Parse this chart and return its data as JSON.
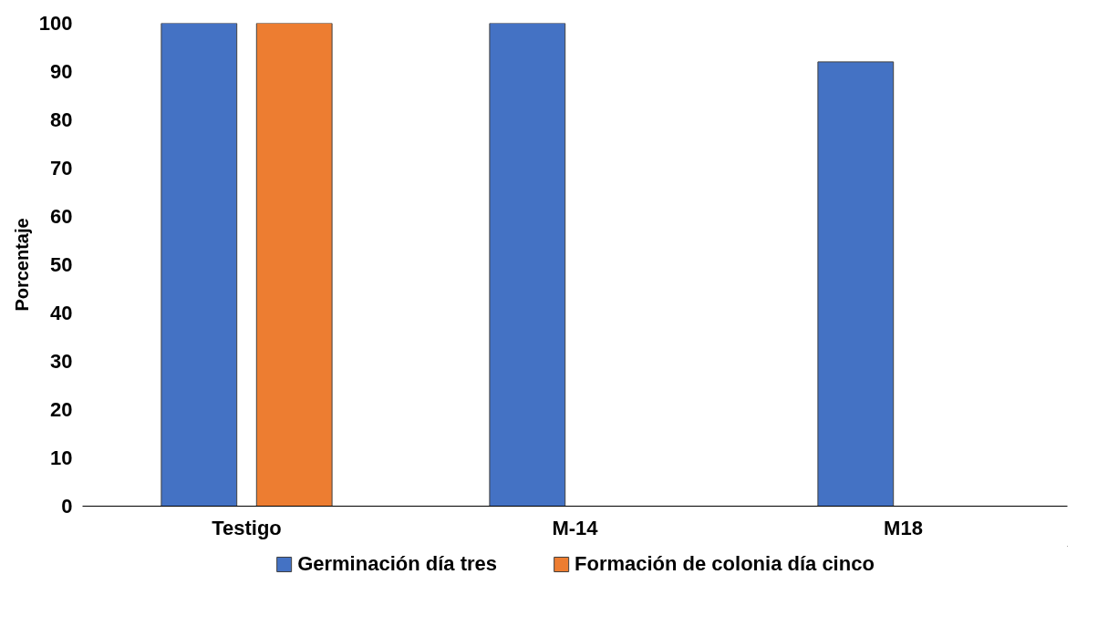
{
  "chart_data": {
    "type": "bar",
    "ylabel": "Porcentaje",
    "categories": [
      "Testigo",
      "M-14",
      "M18"
    ],
    "series": [
      {
        "name": "Germinación día tres",
        "color": "#4472c4",
        "values": [
          100,
          100,
          92
        ]
      },
      {
        "name": "Formación de colonia día cinco",
        "color": "#ed7d31",
        "values": [
          100,
          null,
          null
        ]
      }
    ],
    "ylim": [
      0,
      100
    ],
    "yticks": [
      0,
      10,
      20,
      30,
      40,
      50,
      60,
      70,
      80,
      90,
      100
    ],
    "grid": false,
    "legend": "bottom"
  }
}
